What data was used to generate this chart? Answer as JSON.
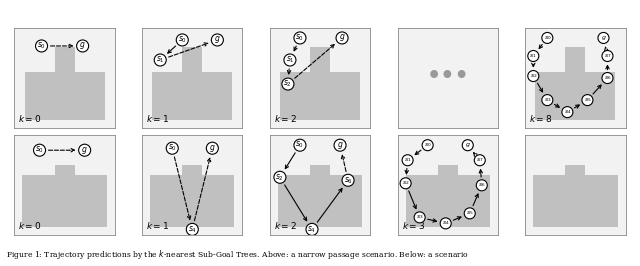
{
  "figsize": [
    6.4,
    2.66
  ],
  "dpi": 100,
  "panel_bg": "#f2f2f2",
  "obstacle_color": "#c0c0c0",
  "caption": "Figure 1: Trajectory predictions by the k-nearest Sub-Goal Trees. Above: a narrow passage scenario. Below: a scenario",
  "top_labels": [
    "k = 0",
    "k = 1",
    "k = 2",
    "",
    "k = 8"
  ],
  "bot_labels": [
    "k = 0",
    "k = 1",
    "k = 2",
    "k = 3",
    ""
  ]
}
